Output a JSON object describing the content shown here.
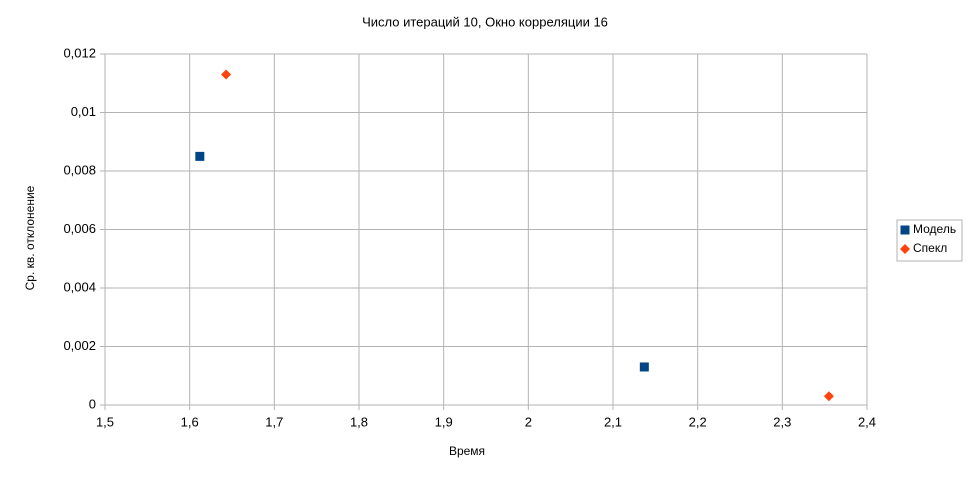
{
  "chart_data": {
    "type": "scatter",
    "title": "Число итераций 10, Окно корреляции 16",
    "x_label": "Время",
    "y_label": "Ср. кв. отклонение",
    "xlim": [
      1.5,
      2.4
    ],
    "ylim": [
      0,
      0.012
    ],
    "xticks": [
      {
        "value": 1.5,
        "label": "1,5"
      },
      {
        "value": 1.6,
        "label": "1,6"
      },
      {
        "value": 1.7,
        "label": "1,7"
      },
      {
        "value": 1.8,
        "label": "1,8"
      },
      {
        "value": 1.9,
        "label": "1,9"
      },
      2,
      {
        "value": 2.1,
        "label": "2,1"
      },
      {
        "value": 2.2,
        "label": "2,2"
      },
      {
        "value": 2.3,
        "label": "2,3"
      },
      {
        "value": 2.4,
        "label": "2,4"
      }
    ],
    "yticks": [
      0,
      {
        "value": 0.002,
        "label": "0,002"
      },
      {
        "value": 0.004,
        "label": "0,004"
      },
      {
        "value": 0.006,
        "label": "0,006"
      },
      {
        "value": 0.008,
        "label": "0,008"
      },
      {
        "value": 0.01,
        "label": "0,01"
      },
      {
        "value": 0.012,
        "label": "0,012"
      }
    ],
    "grid": true,
    "legend": "right",
    "series": [
      {
        "name": "Модель",
        "color": "#004586",
        "marker": "square",
        "x": [
          1.612,
          2.137
        ],
        "values": [
          0.0085,
          0.0013
        ]
      },
      {
        "name": "Спекл",
        "color": "#ff420e",
        "marker": "diamond",
        "x": [
          1.643,
          2.355
        ],
        "values": [
          0.0113,
          0.0003
        ]
      }
    ]
  }
}
